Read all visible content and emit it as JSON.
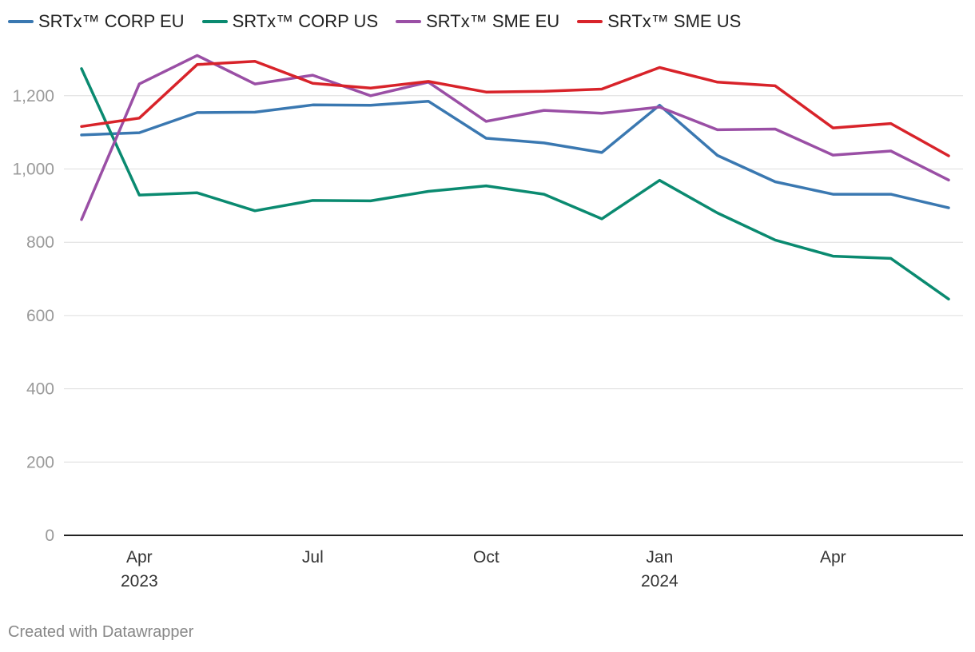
{
  "chart_data": {
    "type": "line",
    "title": "",
    "xlabel": "",
    "ylabel": "",
    "ylim": [
      0,
      1300
    ],
    "yticks": [
      0,
      200,
      400,
      600,
      800,
      1000,
      1200
    ],
    "ytick_labels": [
      "0",
      "200",
      "400",
      "600",
      "800",
      "1,000",
      "1,200"
    ],
    "x": [
      0,
      1,
      2,
      3,
      4,
      5,
      6,
      7,
      8,
      9,
      10,
      11,
      12,
      13,
      14,
      15
    ],
    "x_dates": [
      "2023-03",
      "2023-04",
      "2023-05",
      "2023-06",
      "2023-07",
      "2023-08",
      "2023-09",
      "2023-10",
      "2023-11",
      "2023-12",
      "2024-01",
      "2024-02",
      "2024-03",
      "2024-04",
      "2024-05",
      "2024-06"
    ],
    "xtick_index": [
      1,
      4,
      7,
      10,
      13
    ],
    "xtick_labels": [
      "Apr",
      "Jul",
      "Oct",
      "Jan",
      "Apr"
    ],
    "xtick_sublabels": [
      "2023",
      "",
      "",
      "2024",
      ""
    ],
    "legend_position": "top-left",
    "series": [
      {
        "name": "SRTx™ CORP EU",
        "color": "#3a78b1",
        "values": [
          1093,
          1099,
          1154,
          1155,
          1175,
          1174,
          1185,
          1084,
          1071,
          1045,
          1174,
          1037,
          965,
          931,
          931,
          894
        ]
      },
      {
        "name": "SRTx™ CORP US",
        "color": "#0a8a70",
        "values": [
          1274,
          929,
          935,
          886,
          914,
          913,
          939,
          954,
          931,
          864,
          969,
          880,
          806,
          762,
          756,
          645
        ]
      },
      {
        "name": "SRTx™ SME EU",
        "color": "#9a4fa5",
        "values": [
          862,
          1232,
          1310,
          1232,
          1256,
          1200,
          1237,
          1130,
          1160,
          1152,
          1169,
          1107,
          1109,
          1038,
          1049,
          970
        ]
      },
      {
        "name": "SRTx™ SME US",
        "color": "#d8232a",
        "values": [
          1116,
          1139,
          1285,
          1294,
          1234,
          1221,
          1239,
          1210,
          1212,
          1218,
          1277,
          1237,
          1227,
          1112,
          1124,
          1036
        ]
      }
    ]
  },
  "footer": {
    "credit": "Created with Datawrapper"
  }
}
